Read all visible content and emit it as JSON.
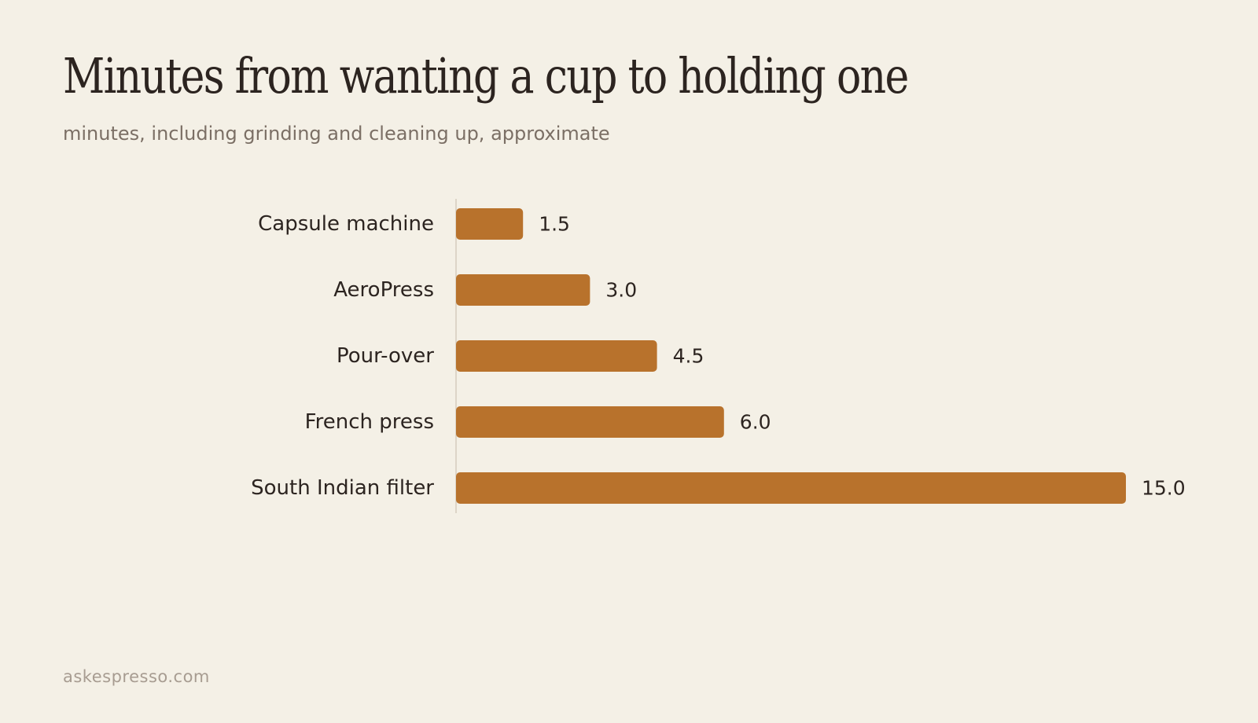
{
  "chart_data": {
    "type": "bar",
    "orientation": "horizontal",
    "title": "Minutes from wanting a cup to holding one",
    "subtitle": "minutes, including grinding and cleaning up, approximate",
    "categories": [
      "Capsule machine",
      "AeroPress",
      "Pour-over",
      "French press",
      "South Indian filter"
    ],
    "values": [
      1.5,
      3.0,
      4.5,
      6.0,
      15.0
    ],
    "value_labels": [
      "1.5",
      "3.0",
      "4.5",
      "6.0",
      "15.0"
    ],
    "xlim": [
      0,
      15
    ],
    "grid": false,
    "bar_color": "#b8722c",
    "axis_color": "#ddd5c8"
  },
  "footer": {
    "source": "askespresso.com"
  }
}
